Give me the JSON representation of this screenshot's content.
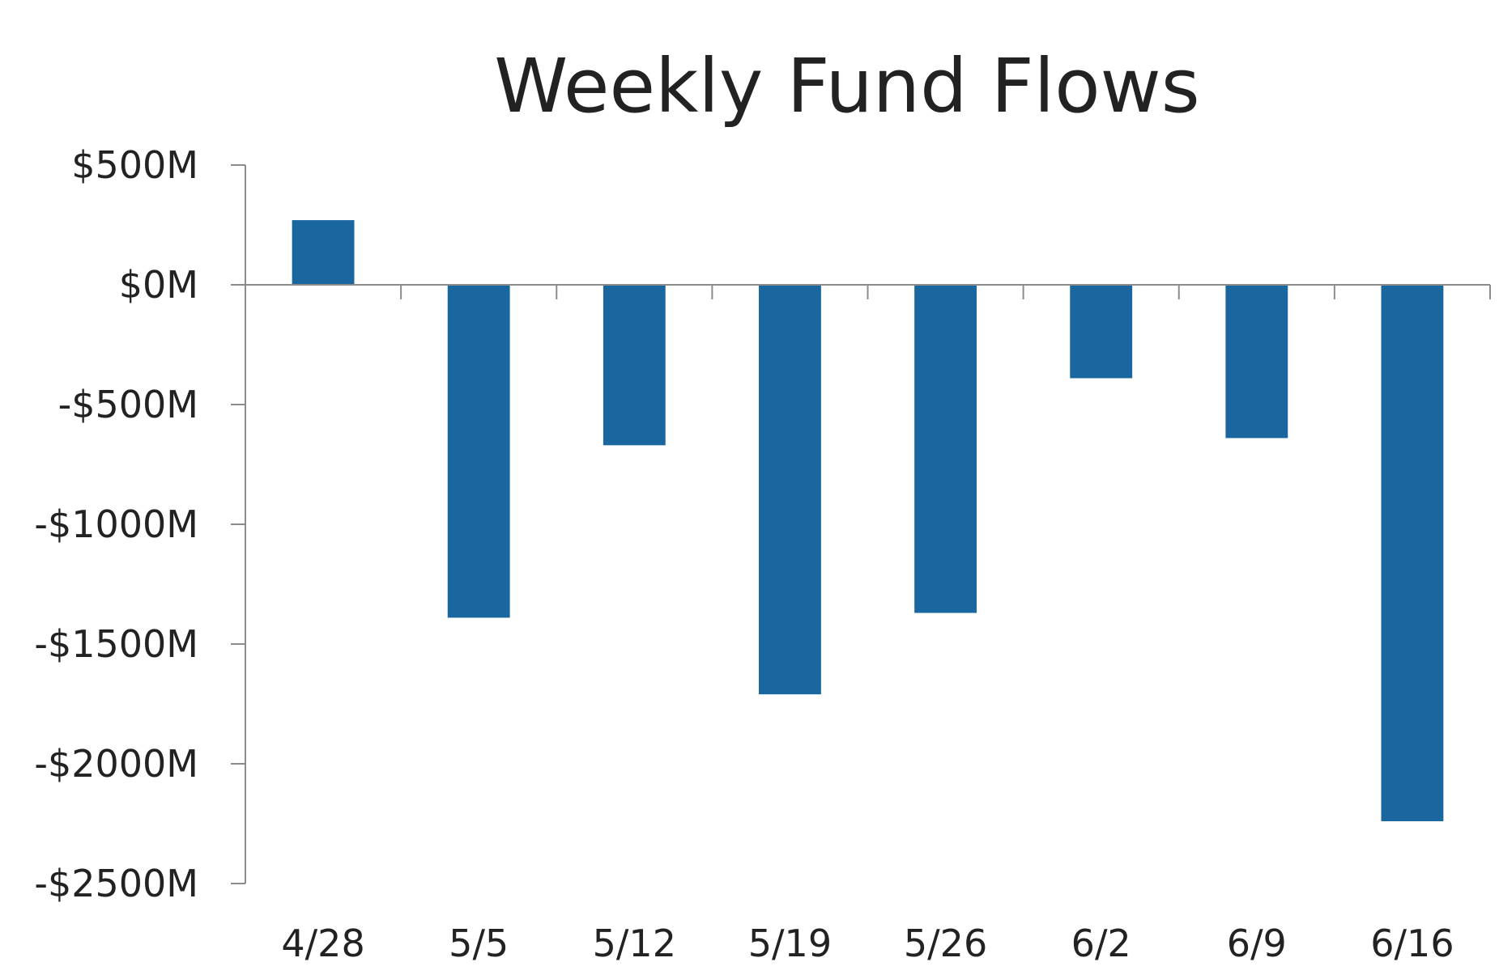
{
  "chart_data": {
    "type": "bar",
    "title": "Weekly Fund Flows",
    "xlabel": "",
    "ylabel": "",
    "categories": [
      "4/28",
      "5/5",
      "5/12",
      "5/19",
      "5/26",
      "6/2",
      "6/9",
      "6/16"
    ],
    "values": [
      270,
      -1390,
      -670,
      -1710,
      -1370,
      -390,
      -640,
      -2240
    ],
    "ylim": [
      -2500,
      500
    ],
    "y_ticks": [
      500,
      0,
      -500,
      -1000,
      -1500,
      -2000,
      -2500
    ],
    "y_tick_labels": [
      "$500M",
      "$0M",
      "-$500M",
      "-$1000M",
      "-$1500M",
      "-$2000M",
      "-$2500M"
    ],
    "bar_color": "#1a67a0",
    "axis_color": "#8c8c8c",
    "grid": false,
    "legend": "none"
  }
}
